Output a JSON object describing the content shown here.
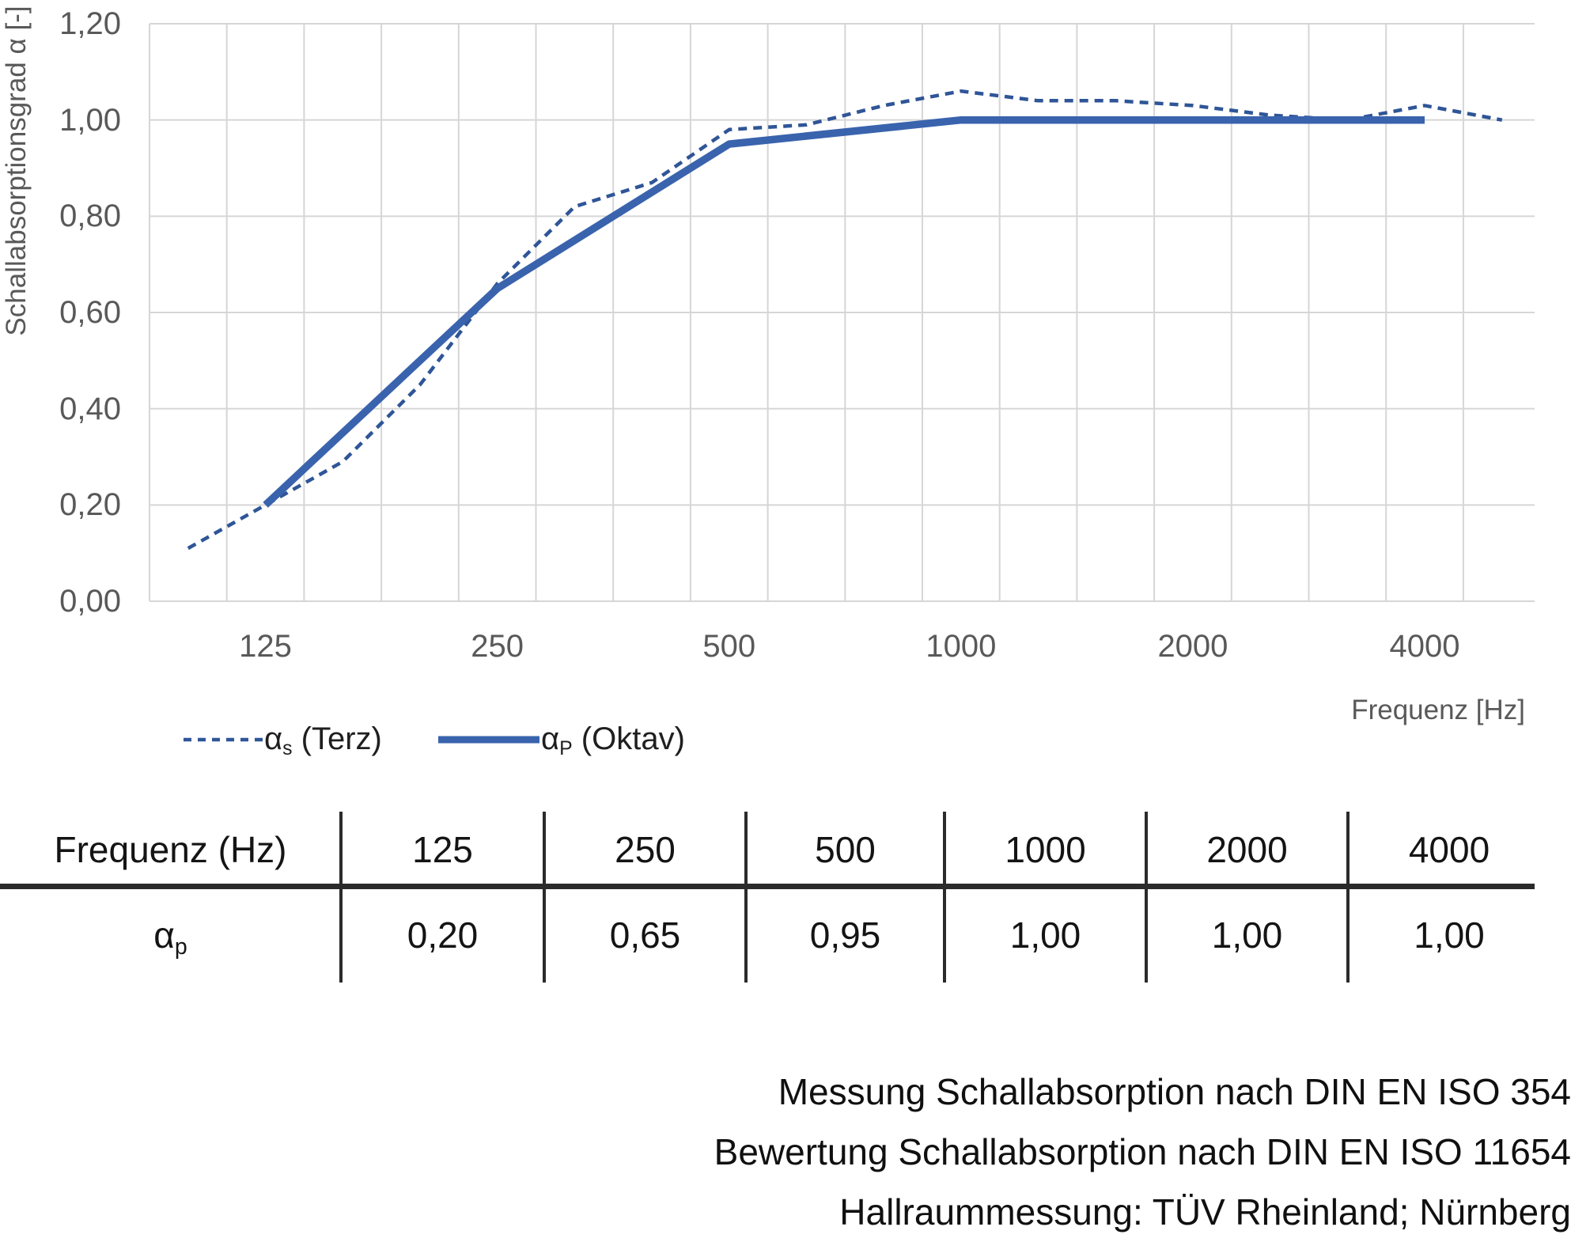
{
  "colors": {
    "background": "#ffffff",
    "gridline": "#d6d6d6",
    "axis_text": "#595959",
    "series_terz": "#2f5597",
    "series_oktav": "#3a63ad",
    "table_line": "#2b2b2b",
    "text": "#141414"
  },
  "chart_data": {
    "type": "line",
    "title": "",
    "xlabel": "Frequenz [Hz]",
    "ylabel": "Schallabsorptionsgrad α [-]",
    "x_scale": "third-octave-band categories (logarithmic)",
    "categories": [
      100,
      125,
      160,
      200,
      250,
      315,
      400,
      500,
      630,
      800,
      1000,
      1250,
      1600,
      2000,
      2500,
      3150,
      4000,
      5000
    ],
    "x_tick_labels": [
      "125",
      "250",
      "500",
      "1000",
      "2000",
      "4000"
    ],
    "y_tick_labels": [
      "1,20",
      "1,00",
      "0,80",
      "0,60",
      "0,40",
      "0,20",
      "0,00"
    ],
    "ylim": [
      0,
      1.2
    ],
    "grid": true,
    "legend_position": "bottom-left",
    "series": [
      {
        "name": "αs (Terz)",
        "style": "dashed",
        "color_key": "series_terz",
        "x": [
          100,
          125,
          160,
          200,
          250,
          315,
          400,
          500,
          630,
          800,
          1000,
          1250,
          1600,
          2000,
          2500,
          3150,
          4000,
          5000
        ],
        "values": [
          0.11,
          0.2,
          0.29,
          0.45,
          0.66,
          0.82,
          0.87,
          0.98,
          0.99,
          1.03,
          1.06,
          1.04,
          1.04,
          1.03,
          1.01,
          1.0,
          1.03,
          1.0
        ]
      },
      {
        "name": "αP (Oktav)",
        "style": "solid",
        "color_key": "series_oktav",
        "x": [
          125,
          250,
          500,
          1000,
          2000,
          4000
        ],
        "values": [
          0.2,
          0.65,
          0.95,
          1.0,
          1.0,
          1.0
        ]
      }
    ]
  },
  "legend": {
    "items": [
      {
        "base": "α",
        "sub": "s",
        "rest": " (Terz)",
        "style": "dashed"
      },
      {
        "base": "α",
        "sub": "P",
        "rest": " (Oktav)",
        "style": "solid"
      }
    ]
  },
  "table": {
    "header_row": [
      "Frequenz (Hz)",
      "125",
      "250",
      "500",
      "1000",
      "2000",
      "4000"
    ],
    "value_row_label": {
      "base": "α",
      "sub": "p"
    },
    "value_row": [
      "0,20",
      "0,65",
      "0,95",
      "1,00",
      "1,00",
      "1,00"
    ]
  },
  "footer": {
    "lines": [
      "Messung Schallabsorption nach DIN EN ISO 354",
      "Bewertung Schallabsorption nach DIN EN ISO 11654",
      "Hallraummessung: TÜV Rheinland; Nürnberg"
    ]
  }
}
